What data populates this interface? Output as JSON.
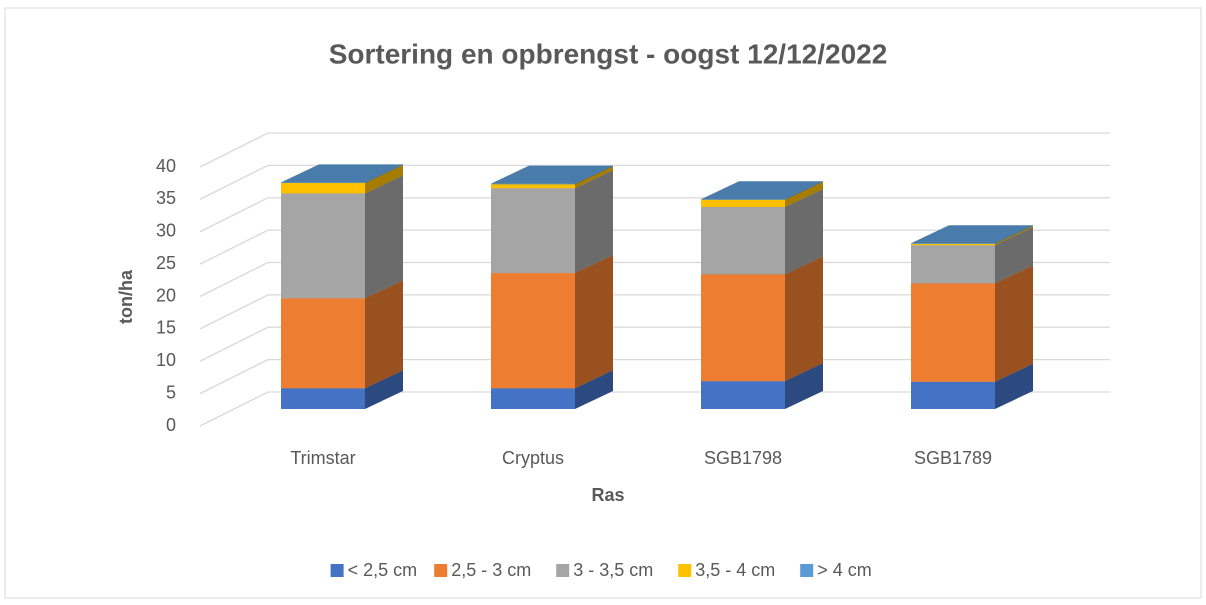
{
  "chart_data": {
    "type": "bar3d_stacked",
    "title": "Sortering en opbrengst - oogst 12/12/2022",
    "x_label": "Ras",
    "y_label": "ton/ha",
    "categories": [
      "Trimstar",
      "Cryptus",
      "SGB1798",
      "SGB1789"
    ],
    "series": [
      {
        "name": "< 2,5 cm",
        "color": "#4472c4",
        "values": [
          3.2,
          3.2,
          4.3,
          4.2
        ]
      },
      {
        "name": "2,5 - 3 cm",
        "color": "#ed7d31",
        "values": [
          13.9,
          17.8,
          16.5,
          15.2
        ]
      },
      {
        "name": "3 - 3,5 cm",
        "color": "#a5a5a5",
        "values": [
          16.2,
          13.1,
          10.4,
          5.9
        ]
      },
      {
        "name": "3,5 - 4 cm",
        "color": "#ffc000",
        "values": [
          1.6,
          0.6,
          1.1,
          0.2
        ]
      },
      {
        "name": "> 4 cm",
        "color": "#5b9bd5",
        "values": [
          0.1,
          0.1,
          0.1,
          0.1
        ]
      }
    ],
    "ylim": [
      0,
      40
    ],
    "yticks": [
      0,
      5,
      10,
      15,
      20,
      25,
      30,
      35,
      40
    ],
    "grid": true,
    "legend": "bottom"
  }
}
